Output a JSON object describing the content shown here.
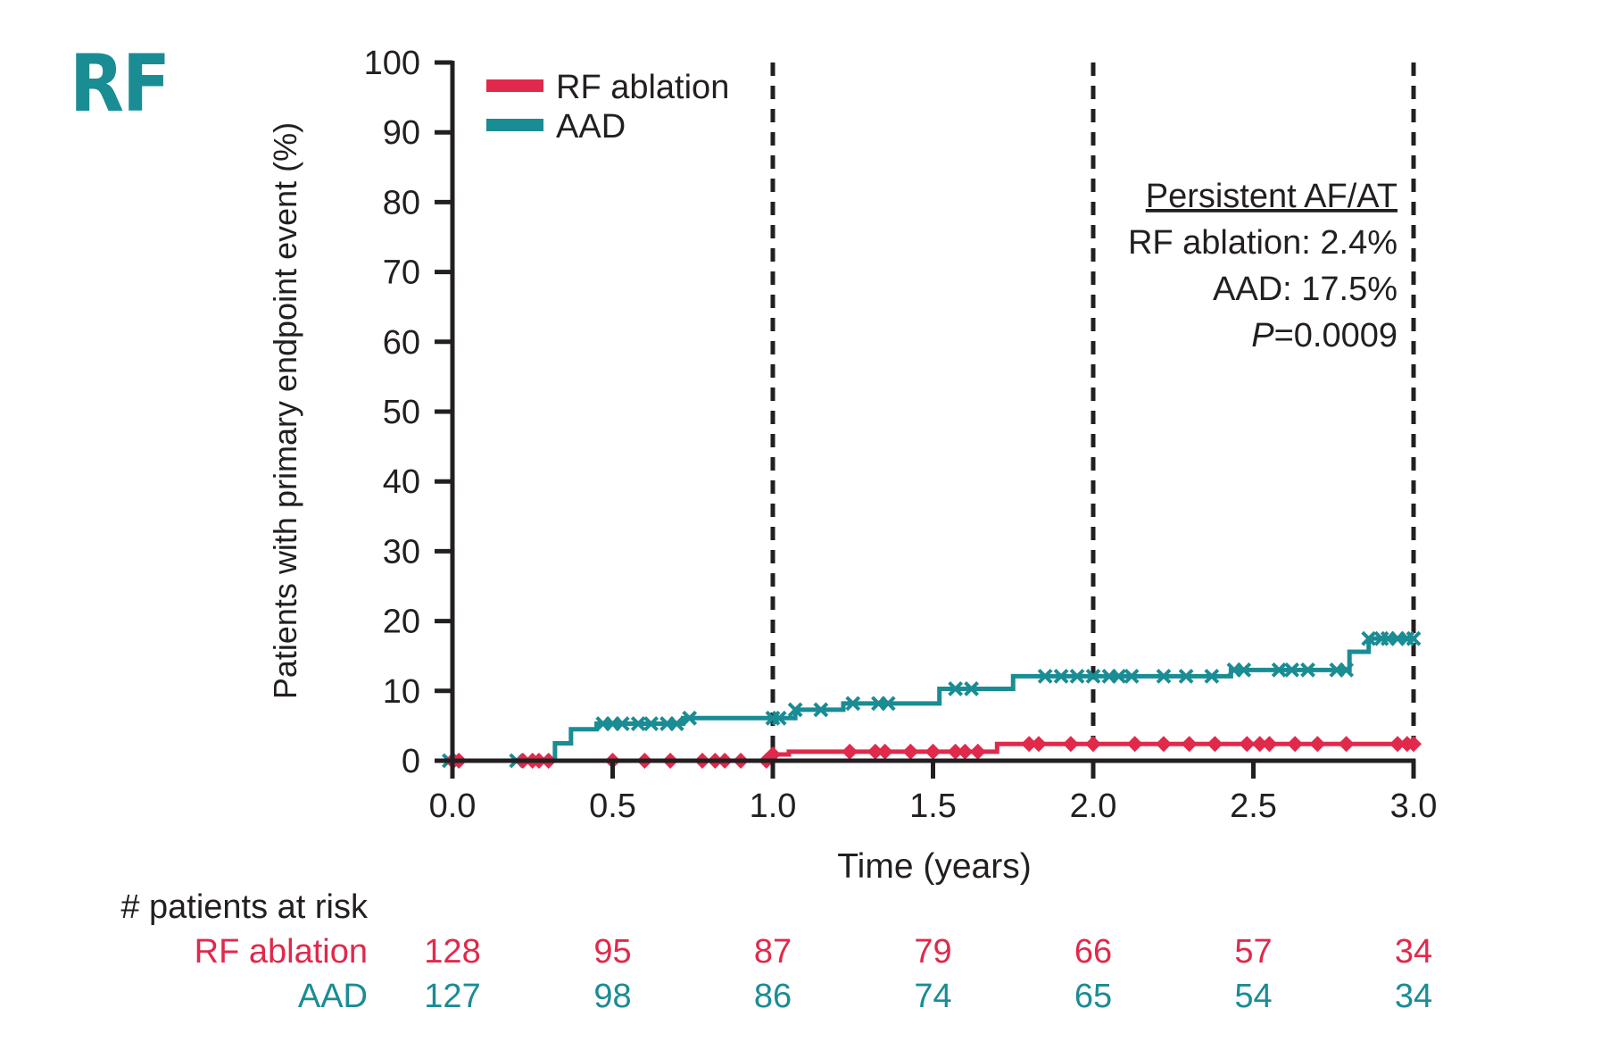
{
  "panel_label": "RF",
  "colors": {
    "rf": "#e0294b",
    "aad": "#1a8c94",
    "axis": "#231f20",
    "label": "#1a8c94"
  },
  "chart_data": {
    "type": "line",
    "subtype": "kaplan-meier step",
    "xlabel": "Time (years)",
    "ylabel": "Patients with primary endpoint event (%)",
    "xlim": [
      0,
      3
    ],
    "ylim": [
      0,
      100
    ],
    "xticks": [
      "0.0",
      "0.5",
      "1.0",
      "1.5",
      "2.0",
      "2.5",
      "3.0"
    ],
    "yticks": [
      "0",
      "10",
      "20",
      "30",
      "40",
      "50",
      "60",
      "70",
      "80",
      "90",
      "100"
    ],
    "vlines": [
      1.0,
      2.0,
      3.0
    ],
    "legend": {
      "position": "top-left",
      "entries": [
        "RF ablation",
        "AAD"
      ]
    },
    "series": [
      {
        "name": "RF ablation",
        "color": "#e0294b",
        "marker": "diamond",
        "steps": [
          [
            0,
            0
          ],
          [
            1.0,
            0.9
          ],
          [
            1.05,
            1.3
          ],
          [
            1.7,
            2.4
          ],
          [
            3.0,
            2.4
          ]
        ],
        "censored": [
          0.0,
          0.02,
          0.22,
          0.25,
          0.27,
          0.3,
          0.5,
          0.6,
          0.68,
          0.78,
          0.82,
          0.85,
          0.9,
          0.98,
          1.0,
          1.24,
          1.32,
          1.35,
          1.43,
          1.5,
          1.57,
          1.6,
          1.64,
          1.8,
          1.83,
          1.93,
          2.0,
          2.13,
          2.22,
          2.3,
          2.38,
          2.48,
          2.52,
          2.55,
          2.63,
          2.7,
          2.79,
          2.95,
          2.98,
          3.0
        ]
      },
      {
        "name": "AAD",
        "color": "#1a8c94",
        "marker": "x",
        "steps": [
          [
            0,
            0
          ],
          [
            0.32,
            2.5
          ],
          [
            0.37,
            4.5
          ],
          [
            0.45,
            5.3
          ],
          [
            0.72,
            6.1
          ],
          [
            1.0,
            6.1
          ],
          [
            1.07,
            7.3
          ],
          [
            1.22,
            8.2
          ],
          [
            1.52,
            10.3
          ],
          [
            1.75,
            12.1
          ],
          [
            2.43,
            13.0
          ],
          [
            2.8,
            15.6
          ],
          [
            2.86,
            17.5
          ],
          [
            3.0,
            17.5
          ]
        ],
        "censored": [
          -0.01,
          0.2,
          0.47,
          0.5,
          0.53,
          0.58,
          0.62,
          0.67,
          0.7,
          0.74,
          1.0,
          1.02,
          1.07,
          1.15,
          1.25,
          1.33,
          1.36,
          1.57,
          1.62,
          1.85,
          1.9,
          1.95,
          2.0,
          2.05,
          2.08,
          2.12,
          2.22,
          2.29,
          2.37,
          2.44,
          2.47,
          2.58,
          2.62,
          2.67,
          2.76,
          2.79,
          2.86,
          2.9,
          2.92,
          2.95,
          2.98,
          3.0
        ]
      }
    ],
    "annotation": {
      "title": "Persistent AF/AT",
      "lines": [
        "RF ablation: 2.4%",
        "AAD: 17.5%"
      ],
      "p_label": "P",
      "p_value": "=0.0009"
    }
  },
  "risk_table": {
    "title": "# patients at risk",
    "rows": [
      {
        "label": "RF ablation",
        "values": [
          "128",
          "95",
          "87",
          "79",
          "66",
          "57",
          "34"
        ],
        "color": "#e0294b"
      },
      {
        "label": "AAD",
        "values": [
          "127",
          "98",
          "86",
          "74",
          "65",
          "54",
          "34"
        ],
        "color": "#1a8c94"
      }
    ]
  }
}
